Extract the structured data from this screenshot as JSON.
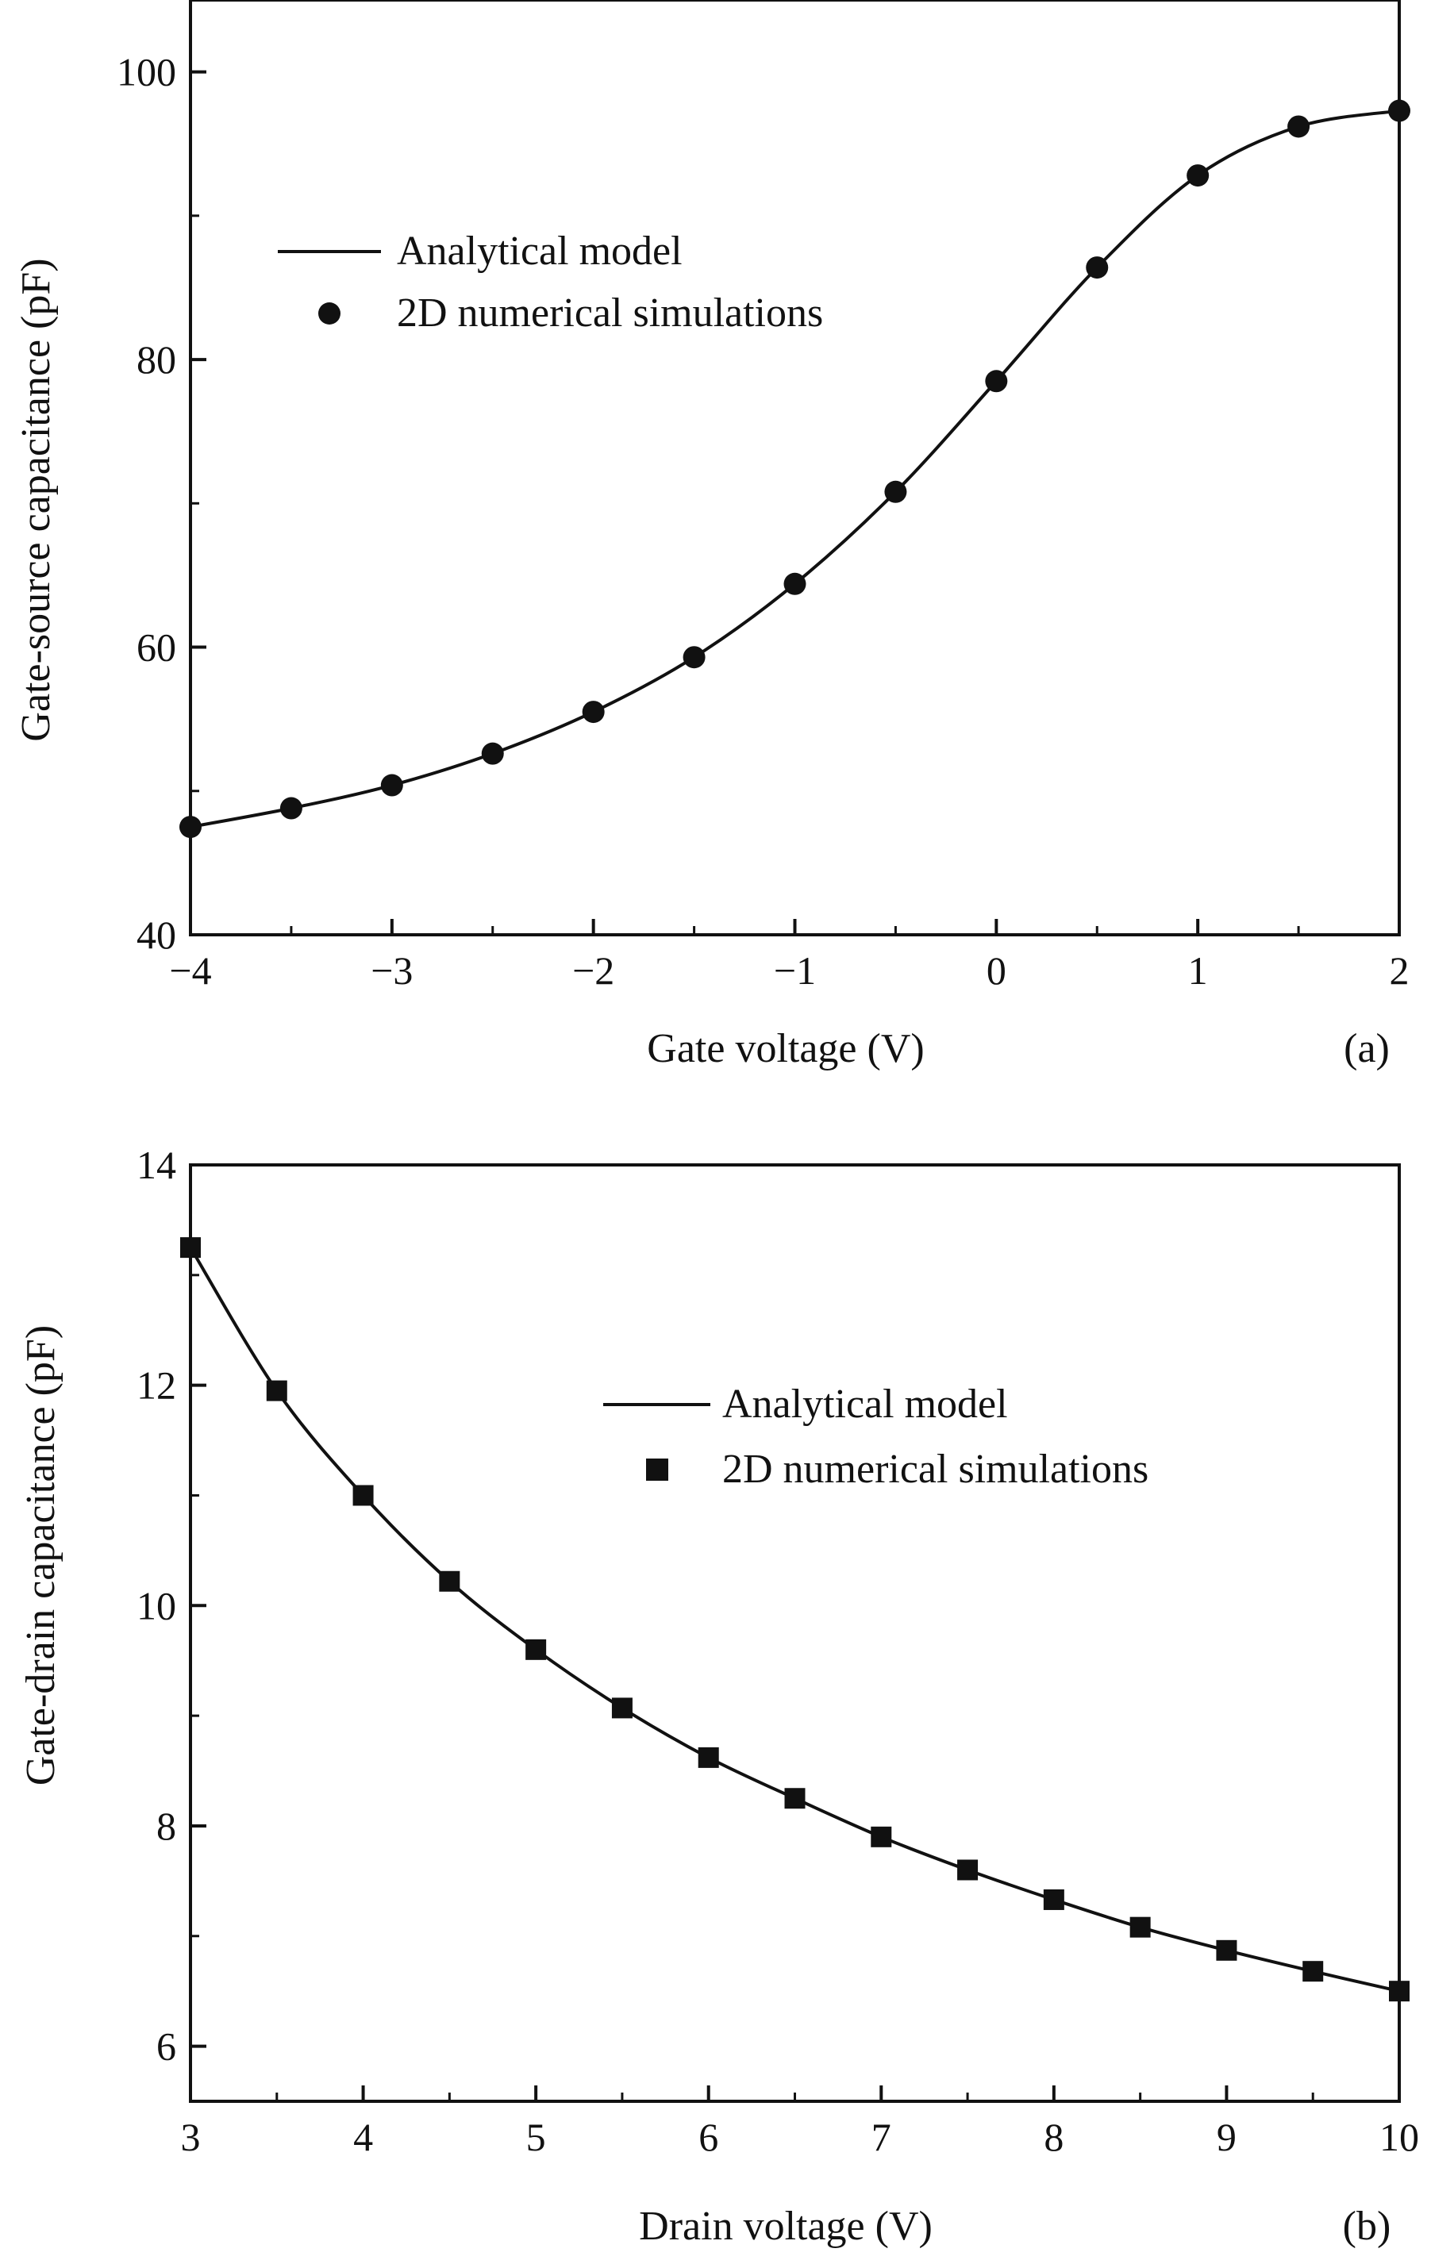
{
  "chart_data": [
    {
      "type": "line",
      "panel_label": "(a)",
      "xlabel": "Gate voltage (V)",
      "ylabel": "Gate-source capacitance (pF)",
      "xlim": [
        -4,
        2
      ],
      "ylim": [
        40,
        105
      ],
      "x_ticks": [
        -4,
        -3,
        -2,
        -1,
        0,
        1,
        2
      ],
      "x_tick_labels": [
        "−4",
        "−3",
        "−2",
        "−1",
        "0",
        "1",
        "2"
      ],
      "y_ticks": [
        40,
        60,
        80,
        100
      ],
      "y_tick_labels": [
        "40",
        "60",
        "80",
        "100"
      ],
      "legend_position": "upper-left",
      "series": [
        {
          "name": "Analytical model",
          "kind": "line",
          "x": [
            -4,
            -3.5,
            -3,
            -2.5,
            -2,
            -1.5,
            -1,
            -0.5,
            0,
            0.5,
            1,
            1.5,
            2
          ],
          "y": [
            47.5,
            48.8,
            50.4,
            52.6,
            55.5,
            59.3,
            64.4,
            70.8,
            78.5,
            86.4,
            92.8,
            96.2,
            97.3
          ]
        },
        {
          "name": "2D numerical simulations",
          "kind": "scatter",
          "marker": "circle",
          "x": [
            -4,
            -3.5,
            -3,
            -2.5,
            -2,
            -1.5,
            -1,
            -0.5,
            0,
            0.5,
            1,
            1.5,
            2
          ],
          "y": [
            47.5,
            48.8,
            50.4,
            52.6,
            55.5,
            59.3,
            64.4,
            70.8,
            78.5,
            86.4,
            92.8,
            96.2,
            97.3
          ]
        }
      ]
    },
    {
      "type": "line",
      "panel_label": "(b)",
      "xlabel": "Drain voltage (V)",
      "ylabel": "Gate-drain capacitance (pF)",
      "xlim": [
        3,
        10
      ],
      "ylim": [
        5.5,
        14
      ],
      "x_ticks": [
        3,
        4,
        5,
        6,
        7,
        8,
        9,
        10
      ],
      "x_tick_labels": [
        "3",
        "4",
        "5",
        "6",
        "7",
        "8",
        "9",
        "10"
      ],
      "y_ticks": [
        6,
        8,
        10,
        12,
        14
      ],
      "y_tick_labels": [
        "6",
        "8",
        "10",
        "12",
        "14"
      ],
      "legend_position": "upper-right",
      "series": [
        {
          "name": "Analytical model",
          "kind": "line",
          "x": [
            3,
            3.5,
            4,
            4.5,
            5,
            5.5,
            6,
            6.5,
            7,
            7.5,
            8,
            8.5,
            9,
            9.5,
            10
          ],
          "y": [
            13.25,
            11.95,
            11.0,
            10.22,
            9.6,
            9.07,
            8.62,
            8.25,
            7.9,
            7.6,
            7.33,
            7.08,
            6.87,
            6.68,
            6.5
          ]
        },
        {
          "name": "2D numerical simulations",
          "kind": "scatter",
          "marker": "square",
          "x": [
            3,
            3.5,
            4,
            4.5,
            5,
            5.5,
            6,
            6.5,
            7,
            7.5,
            8,
            8.5,
            9,
            9.5,
            10
          ],
          "y": [
            13.25,
            11.95,
            11.0,
            10.22,
            9.6,
            9.07,
            8.62,
            8.25,
            7.9,
            7.6,
            7.33,
            7.08,
            6.87,
            6.68,
            6.5
          ]
        }
      ]
    }
  ],
  "colors": {
    "ink": "#111111",
    "background": "#ffffff"
  }
}
